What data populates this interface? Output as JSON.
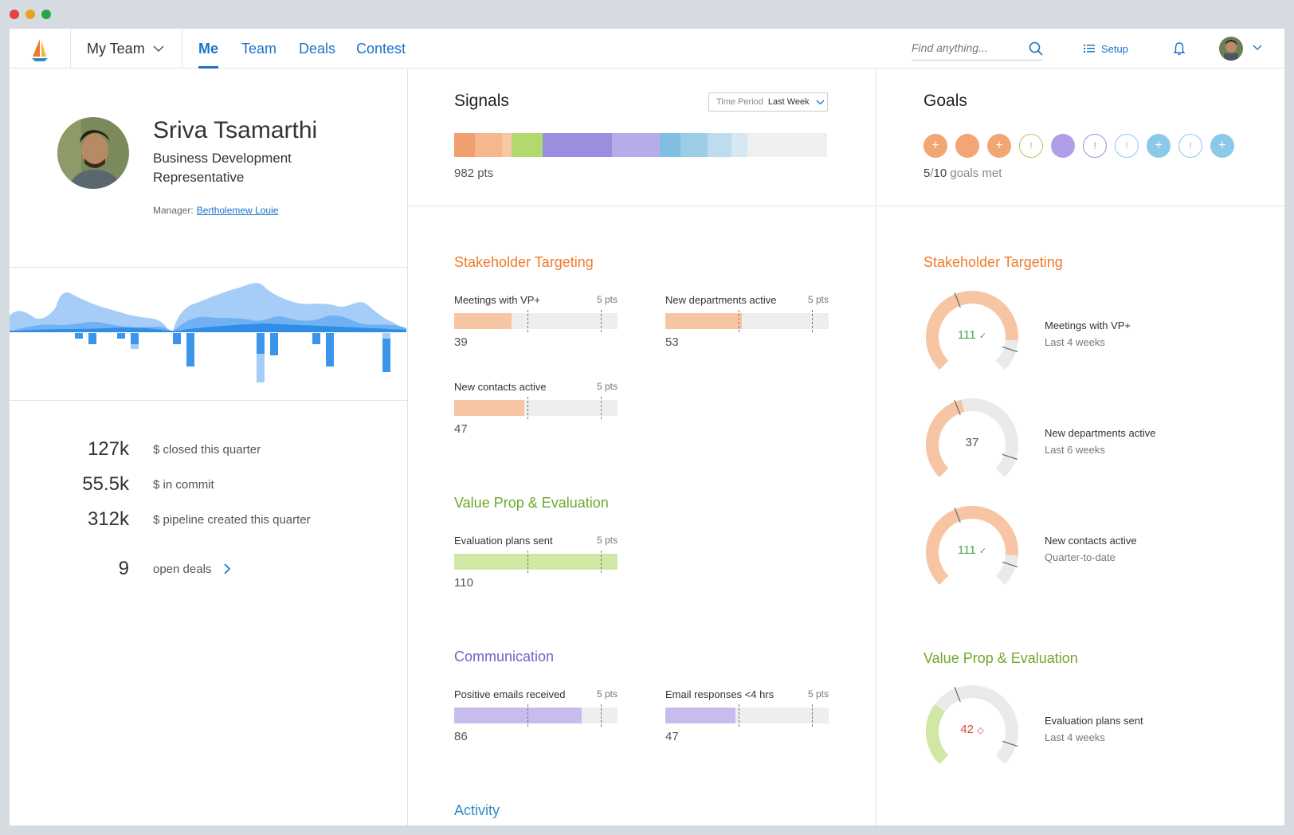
{
  "window": {
    "dots": [
      "#e0443a",
      "#e8a21d",
      "#26a645"
    ]
  },
  "nav": {
    "team_selector": "My Team",
    "tabs": [
      "Me",
      "Team",
      "Deals",
      "Contest"
    ],
    "search_placeholder": "Find anything...",
    "setup_label": "Setup"
  },
  "profile": {
    "name": "Sriva Tsamarthi",
    "role": "Business Development Representative",
    "manager_label": "Manager:",
    "manager_name": "Bertholemew Louie"
  },
  "stats": [
    {
      "value": "127k",
      "label": "$ closed this quarter"
    },
    {
      "value": "55.5k",
      "label": "$ in commit"
    },
    {
      "value": "312k",
      "label": "$ pipeline created this quarter"
    },
    {
      "value": "9",
      "label": "open deals"
    }
  ],
  "signals": {
    "title": "Signals",
    "time_period_label": "Time Period",
    "time_period_value": "Last Week",
    "points": "982 pts",
    "bar_colors": [
      "#f0a070",
      "#f5b88c",
      "#f8c8a4",
      "#b2d86e",
      "#9a8ede",
      "#b6acea",
      "#7fbede",
      "#9ccde6",
      "#bedcf0",
      "#d6e8f4"
    ]
  },
  "goals": {
    "title": "Goals",
    "met": "5",
    "total": "10",
    "met_suffix": "goals met",
    "items": [
      {
        "style": "filled",
        "color": "#f4a574",
        "glyph": "+"
      },
      {
        "style": "filled",
        "color": "#f4a574",
        "glyph": ""
      },
      {
        "style": "filled",
        "color": "#f4a574",
        "glyph": "+"
      },
      {
        "style": "outline",
        "color": "#a6d05a",
        "glyph": "!"
      },
      {
        "style": "filled",
        "color": "#b09ee8",
        "glyph": ""
      },
      {
        "style": "outline",
        "color": "#9a8ede",
        "glyph": "!"
      },
      {
        "style": "outline",
        "color": "#8cc8e8",
        "glyph": "!"
      },
      {
        "style": "filled",
        "color": "#8cc8e8",
        "glyph": "+"
      },
      {
        "style": "outline",
        "color": "#8cc8e8",
        "glyph": "!"
      },
      {
        "style": "filled",
        "color": "#8cc8e8",
        "glyph": "+"
      }
    ]
  },
  "categories": {
    "stakeholder": {
      "title": "Stakeholder Targeting",
      "color": "#f07a2a",
      "fill": "#f7c5a4"
    },
    "valueprop": {
      "title": "Value Prop & Evaluation",
      "color": "#6fa82c",
      "fill": "#d1e8a4"
    },
    "communication": {
      "title": "Communication",
      "color": "#7a5cc8",
      "fill": "#c8bcee"
    },
    "activity": {
      "title": "Activity",
      "color": "#2f8bc6"
    }
  },
  "metrics": {
    "meetings_vp": {
      "label": "Meetings with VP+",
      "pts": "5 pts",
      "value": "39",
      "fraction": 0.35
    },
    "new_departments": {
      "label": "New departments active",
      "pts": "5 pts",
      "value": "53",
      "fraction": 0.47
    },
    "new_contacts": {
      "label": "New contacts active",
      "pts": "5 pts",
      "value": "47",
      "fraction": 0.43
    },
    "eval_plans": {
      "label": "Evaluation plans sent",
      "pts": "5 pts",
      "value": "110",
      "fraction": 1.0
    },
    "positive_emails": {
      "label": "Positive emails received",
      "pts": "5 pts",
      "value": "86",
      "fraction": 0.78
    },
    "email_responses": {
      "label": "Email responses <4 hrs",
      "pts": "5 pts",
      "value": "47",
      "fraction": 0.43
    }
  },
  "gauges": {
    "g1": {
      "value": "111",
      "label": "Meetings with VP+",
      "period": "Last 4 weeks",
      "fraction": 0.85,
      "color": "#f7c5a4",
      "text_color": "#4aa64a",
      "icon": "✓"
    },
    "g2": {
      "value": "37",
      "label": "New departments active",
      "period": "Last 6 weeks",
      "fraction": 0.45,
      "color": "#f7c5a4",
      "text_color": "#555",
      "icon": ""
    },
    "g3": {
      "value": "111",
      "label": "New contacts active",
      "period": "Quarter-to-date",
      "fraction": 0.85,
      "color": "#f7c5a4",
      "text_color": "#4aa64a",
      "icon": "✓"
    },
    "g4": {
      "value": "42",
      "label": "Evaluation plans sent",
      "period": "Last 4 weeks",
      "fraction": 0.3,
      "color": "#d1e8a4",
      "text_color": "#e0443a",
      "icon": "◇"
    }
  }
}
